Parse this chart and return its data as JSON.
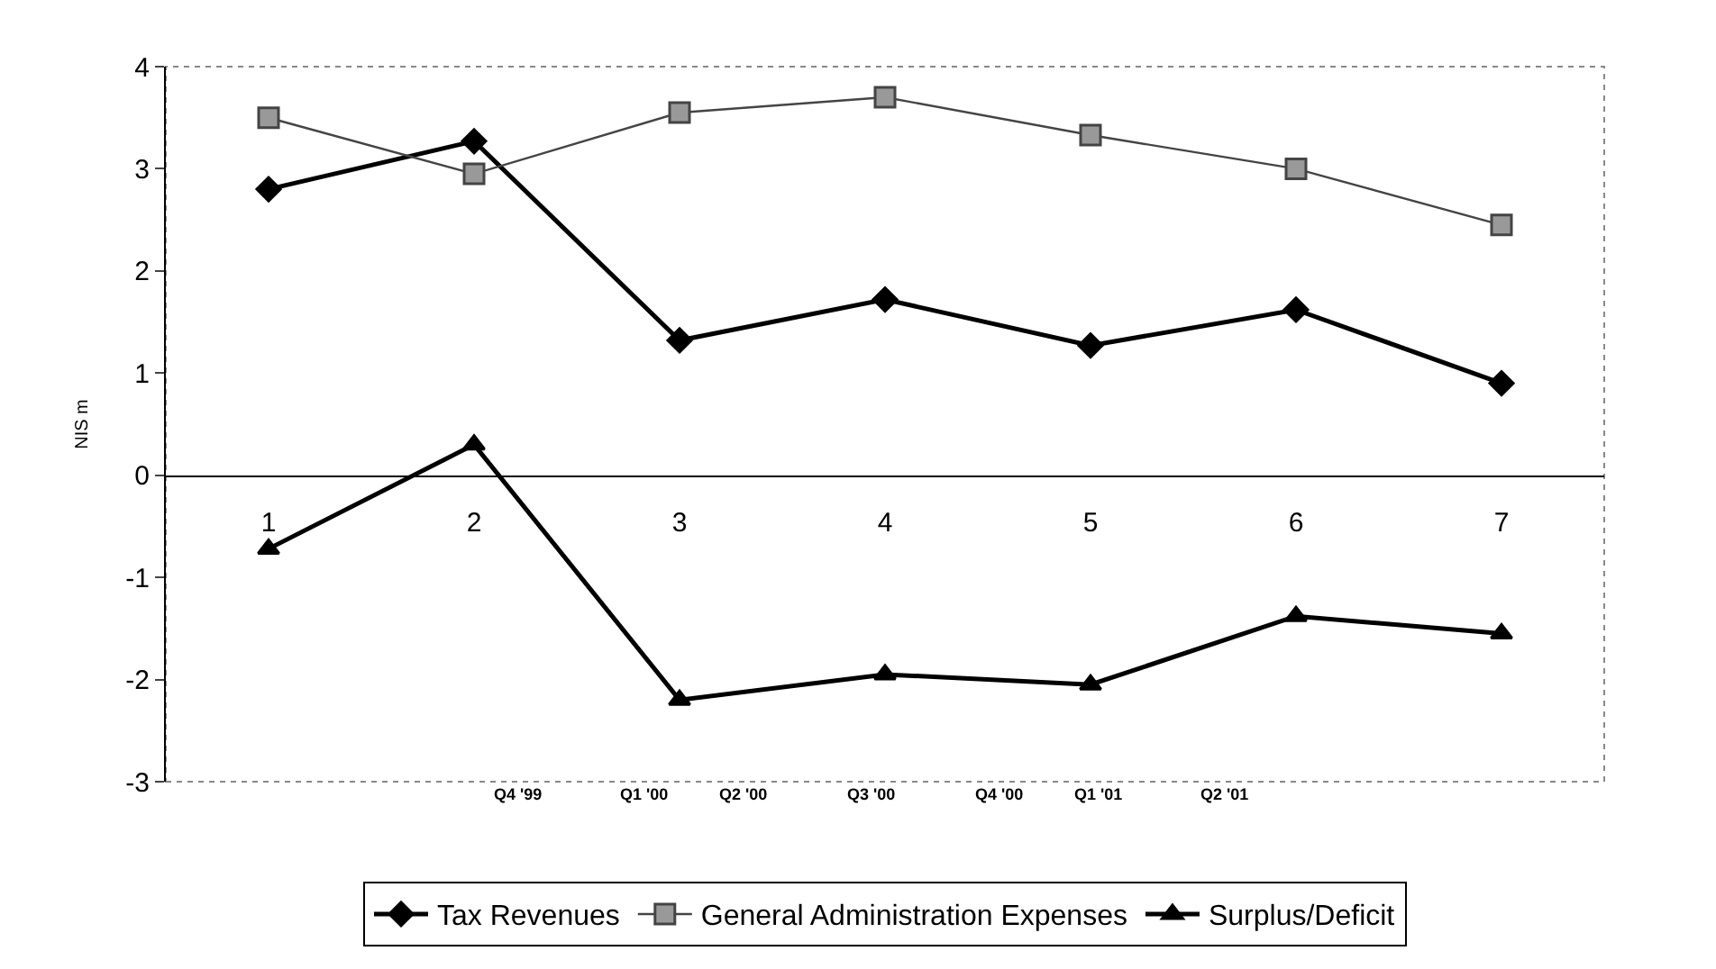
{
  "chart_data": {
    "type": "line",
    "ylabel": "NIS m",
    "categories": [
      "1",
      "2",
      "3",
      "4",
      "5",
      "6",
      "7"
    ],
    "series": [
      {
        "name": "Tax Revenues",
        "color": "#000000",
        "marker": "diamond",
        "values": [
          2.8,
          3.27,
          1.32,
          1.72,
          1.27,
          1.62,
          0.9
        ]
      },
      {
        "name": "General Administration Expenses",
        "color": "#444444",
        "marker": "square",
        "values": [
          3.5,
          2.95,
          3.55,
          3.7,
          3.33,
          3.0,
          2.45
        ]
      },
      {
        "name": "Surplus/Deficit",
        "color": "#000000",
        "marker": "triangle",
        "values": [
          -0.72,
          0.3,
          -2.2,
          -1.95,
          -2.05,
          -1.38,
          -1.55
        ]
      }
    ],
    "ylim": [
      -3,
      4
    ],
    "yticks": [
      -3,
      -2,
      -1,
      0,
      1,
      2,
      3,
      4
    ],
    "grid": false,
    "legend": "bottom",
    "annotations": [
      "Q4 '99",
      "Q1 '00",
      "Q2 '00",
      "Q3 '00",
      "Q4 '00",
      "Q1 '01",
      "Q2 '01"
    ]
  }
}
